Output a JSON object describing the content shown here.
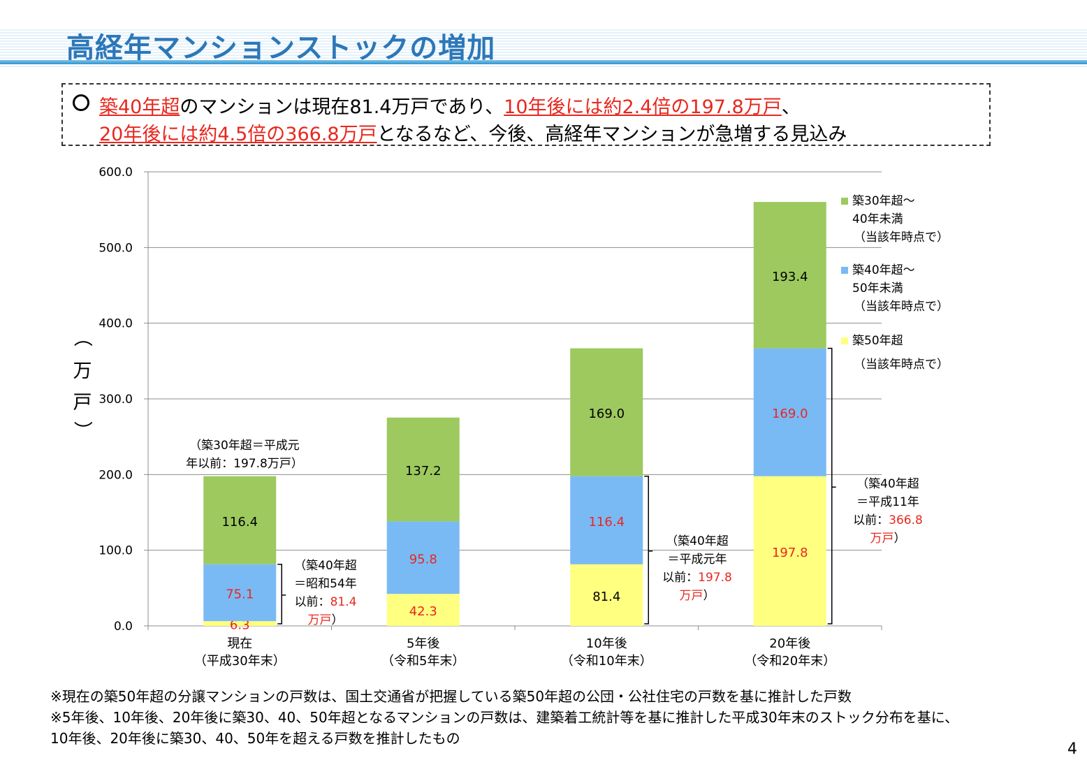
{
  "title": "高経年マンションストックの増加",
  "summary": {
    "bullet_icon": "circle-icon",
    "line1": [
      {
        "text": "築40年超",
        "red": true
      },
      {
        "text": "のマンションは現在81.4万戸であり、",
        "red": false
      },
      {
        "text": "10年後には約2.4倍の197.8万戸",
        "red": true
      },
      {
        "text": "、",
        "red": false
      }
    ],
    "line2": [
      {
        "text": "20年後には約4.5倍の366.8万戸",
        "red": true
      },
      {
        "text": "となるなど、今後、高経年マンションが急増する見込み",
        "red": false
      }
    ]
  },
  "chart_data": {
    "type": "bar",
    "stacked": true,
    "ylabel": "（万戸）",
    "ylim": [
      0,
      600
    ],
    "yticks": [
      "0.0",
      "100.0",
      "200.0",
      "300.0",
      "400.0",
      "500.0",
      "600.0"
    ],
    "grid": true,
    "categories": [
      {
        "line1": "現在",
        "line2": "（平成30年末）"
      },
      {
        "line1": "5年後",
        "line2": "（令和5年末）"
      },
      {
        "line1": "10年後",
        "line2": "（令和10年末）"
      },
      {
        "line1": "20年後",
        "line2": "（令和20年末）"
      }
    ],
    "series": [
      {
        "name": "築50年超（当該年時点で）",
        "legend_lines": [
          "築50年超",
          "（当該年時点で）"
        ],
        "color": "#ffff80",
        "label_color": "#e8271e",
        "values": [
          6.3,
          42.3,
          81.4,
          197.8
        ]
      },
      {
        "name": "築40年超～50年未満（当該年時点で）",
        "legend_lines": [
          "築40年超～",
          "50年未満",
          "（当該年時点で）"
        ],
        "color": "#79baf5",
        "label_color": "#e8271e",
        "values": [
          75.1,
          95.8,
          116.4,
          169.0
        ]
      },
      {
        "name": "築30年超～40年未満（当該年時点で）",
        "legend_lines": [
          "築30年超～",
          "40年未満",
          "（当該年時点で）"
        ],
        "color": "#9dc95f",
        "label_color": "#000000",
        "values": [
          116.4,
          137.2,
          169.0,
          193.4
        ]
      }
    ],
    "data_label_colors": [
      [
        "#e8271e",
        "#e8271e",
        "#000000"
      ],
      [
        "#e8271e",
        "#e8271e",
        "#000000"
      ],
      [
        "#000000",
        "#e8271e",
        "#000000"
      ],
      [
        "#e8271e",
        "#e8271e",
        "#000000"
      ]
    ],
    "legend_position": "right",
    "annotations": [
      {
        "category": 0,
        "lines": [
          [
            {
              "t": "（築30年超＝平成元"
            }
          ],
          [
            {
              "t": "年以前："
            },
            {
              "t": "197.8万戸）"
            }
          ]
        ]
      },
      {
        "category": 0,
        "bracket": true,
        "lines": [
          [
            {
              "t": "（築40年超"
            }
          ],
          [
            {
              "t": "＝昭和54年"
            }
          ],
          [
            {
              "t": "以前："
            },
            {
              "t": "81.4",
              "red": true
            }
          ],
          [
            {
              "t": "万戸",
              "red": true
            },
            {
              "t": "）"
            }
          ]
        ]
      },
      {
        "category": 2,
        "bracket": true,
        "lines": [
          [
            {
              "t": "（築40年超"
            }
          ],
          [
            {
              "t": "＝平成元年"
            }
          ],
          [
            {
              "t": "以前："
            },
            {
              "t": "197.8",
              "red": true
            }
          ],
          [
            {
              "t": "万戸",
              "red": true
            },
            {
              "t": "）"
            }
          ]
        ]
      },
      {
        "category": 3,
        "bracket": true,
        "lines": [
          [
            {
              "t": "（築40年超"
            }
          ],
          [
            {
              "t": "＝平成11年"
            }
          ],
          [
            {
              "t": "以前："
            },
            {
              "t": "366.8",
              "red": true
            }
          ],
          [
            {
              "t": "万戸",
              "red": true
            },
            {
              "t": "）"
            }
          ]
        ]
      }
    ]
  },
  "footnotes": [
    "※現在の築50年超の分譲マンションの戸数は、国土交通省が把握している築50年超の公団・公社住宅の戸数を基に推計した戸数",
    "※5年後、10年後、20年後に築30、40、50年超となるマンションの戸数は、建築着工統計等を基に推計した平成30年末のストック分布を基に、",
    "10年後、20年後に築30、40、50年を超える戸数を推計したもの"
  ],
  "page_number": "4"
}
